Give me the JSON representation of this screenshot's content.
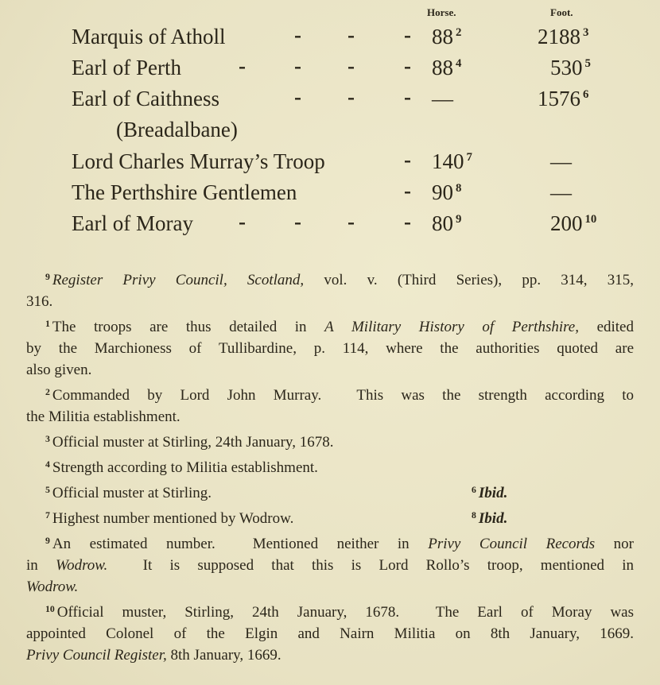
{
  "table": {
    "headers": {
      "horse": "Horse.",
      "foot": "Foot."
    },
    "rows": [
      {
        "name": "Marquis of Atholl",
        "dashes": "-  -  -",
        "horse": "88",
        "horse_note": "2",
        "foot": "2188",
        "foot_note": "3"
      },
      {
        "name": "Earl of Perth",
        "dashes": "-  -  -  -",
        "horse": "88",
        "horse_note": "4",
        "foot": "530",
        "foot_note": "5"
      },
      {
        "name": "Earl of Caithness",
        "dashes": "-  -  -",
        "horse": "—",
        "horse_note": "",
        "foot": "1576",
        "foot_note": "6"
      },
      {
        "name": "(Breadalbane)",
        "dashes": "",
        "horse": "",
        "horse_note": "",
        "foot": "",
        "foot_note": ""
      },
      {
        "name": "Lord Charles Murray’s Troop",
        "dashes": "-",
        "horse": "140",
        "horse_note": "7",
        "foot": "—",
        "foot_note": ""
      },
      {
        "name": "The Perthshire Gentlemen",
        "dashes": "-",
        "horse": "90",
        "horse_note": "8",
        "foot": "—",
        "foot_note": ""
      },
      {
        "name": "Earl of Moray",
        "dashes": "-  -  -  -",
        "horse": "80",
        "horse_note": "9",
        "foot": "200",
        "foot_note": "10"
      }
    ]
  },
  "footnotes": [
    {
      "mark": "9",
      "lines": [
        [
          {
            "t": "Register Privy Council, Scotland,",
            "i": true
          },
          {
            "t": " vol. v. (Third Series), pp. 314, 315,"
          }
        ],
        [
          {
            "t": "316."
          }
        ]
      ]
    },
    {
      "mark": "1",
      "lines": [
        [
          {
            "t": "The troops are thus detailed in "
          },
          {
            "t": "A Military History of Perthshire,",
            "i": true
          },
          {
            "t": " edited"
          }
        ],
        [
          {
            "t": "by the Marchioness of Tullibardine, p. 114, where the authorities quoted are"
          }
        ],
        [
          {
            "t": "also given."
          }
        ]
      ]
    },
    {
      "mark": "2",
      "lines": [
        [
          {
            "t": "Commanded by Lord John Murray.  This was the strength according to"
          }
        ],
        [
          {
            "t": "the Militia establishment."
          }
        ]
      ]
    },
    {
      "mark": "3",
      "lines": [
        [
          {
            "t": "Official muster at Stirling, 24th January, 1678."
          }
        ]
      ]
    },
    {
      "mark": "4",
      "lines": [
        [
          {
            "t": "Strength according to Militia establishment."
          }
        ]
      ]
    },
    {
      "mark": "5",
      "lines": [
        [
          {
            "t": "Official muster at Stirling."
          }
        ]
      ],
      "side": {
        "mark": "6",
        "t": "Ibid."
      }
    },
    {
      "mark": "7",
      "lines": [
        [
          {
            "t": "Highest number mentioned by Wodrow."
          }
        ]
      ],
      "side": {
        "mark": "8",
        "t": "Ibid."
      }
    },
    {
      "mark": "9",
      "lines": [
        [
          {
            "t": "An estimated number.  Mentioned neither in "
          },
          {
            "t": "Privy Council Records",
            "i": true
          },
          {
            "t": " nor"
          }
        ],
        [
          {
            "t": "in "
          },
          {
            "t": "Wodrow.",
            "i": true
          },
          {
            "t": "  It is supposed that this is Lord Rollo’s troop, mentioned in"
          }
        ],
        [
          {
            "t": "Wodrow.",
            "i": true
          }
        ]
      ]
    },
    {
      "mark": "10",
      "lines": [
        [
          {
            "t": "Official muster, Stirling, 24th January, 1678.  The Earl of Moray was"
          }
        ],
        [
          {
            "t": "appointed Colonel of the Elgin and Nairn Militia on 8th January, 1669."
          }
        ],
        [
          {
            "t": "Privy Council Register,",
            "i": true
          },
          {
            "t": " 8th January, 1669."
          }
        ]
      ]
    }
  ]
}
